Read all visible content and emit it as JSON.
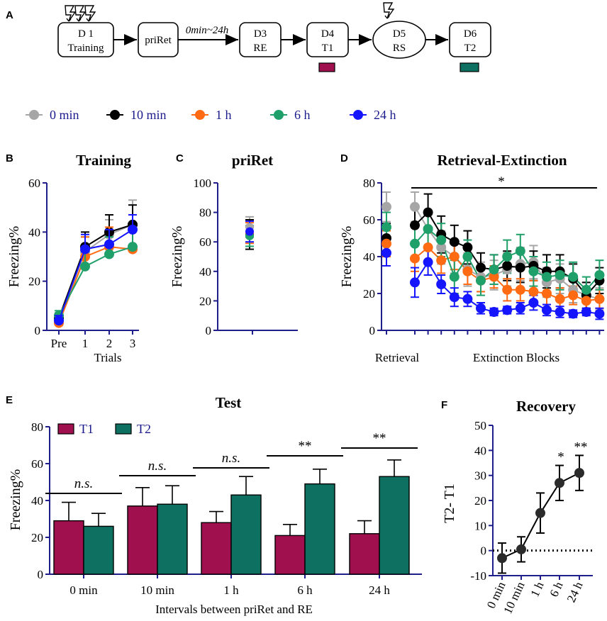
{
  "figure": {
    "panel_letters": [
      "A",
      "B",
      "C",
      "D",
      "E",
      "F"
    ],
    "flow": {
      "boxes": [
        {
          "line1": "D 1",
          "line2": "Training"
        },
        {
          "line1": "priRet",
          "line2": ""
        },
        {
          "line1": "D3",
          "line2": "RE"
        },
        {
          "line1": "D4",
          "line2": "T1"
        },
        {
          "line1": "D5",
          "line2": "RS"
        },
        {
          "line1": "D6",
          "line2": "T2"
        }
      ],
      "interval_label": "0min~24h",
      "t1_color": "#a0104e",
      "t2_color": "#0e7060"
    },
    "legend": [
      {
        "label": "0 min",
        "color": "#a6a6a6"
      },
      {
        "label": "10 min",
        "color": "#000000"
      },
      {
        "label": "1 h",
        "color": "#ff6a13"
      },
      {
        "label": "6 h",
        "color": "#1fa06a"
      },
      {
        "label": "24 h",
        "color": "#1515ff"
      }
    ],
    "y_axis_label": "Freezing%"
  },
  "chart_data": [
    {
      "id": "B",
      "type": "line",
      "title": "Training",
      "xlabel": "Trials",
      "ylabel": "Freezing%",
      "categories": [
        "Pre",
        "1",
        "2",
        "3"
      ],
      "ylim": [
        0,
        60
      ],
      "yticks": [
        0,
        20,
        40,
        60
      ],
      "series": [
        {
          "name": "0 min",
          "values": [
            4,
            32,
            39,
            43
          ],
          "errors": [
            2,
            6,
            6,
            10
          ]
        },
        {
          "name": "10 min",
          "values": [
            5,
            34,
            40,
            43
          ],
          "errors": [
            2,
            6,
            7,
            8
          ]
        },
        {
          "name": "1 h",
          "values": [
            3,
            30,
            34,
            33
          ],
          "errors": [
            2,
            8,
            8,
            9
          ]
        },
        {
          "name": "6 h",
          "values": [
            6,
            26,
            31,
            34
          ],
          "errors": [
            2,
            6,
            7,
            8
          ]
        },
        {
          "name": "24 h",
          "values": [
            4,
            33,
            35,
            41
          ],
          "errors": [
            2,
            6,
            6,
            6
          ]
        }
      ]
    },
    {
      "id": "C",
      "type": "scatter",
      "title": "priRet",
      "ylabel": "Freezing%",
      "ylim": [
        0,
        100
      ],
      "yticks": [
        0,
        20,
        40,
        60,
        80,
        100
      ],
      "series": [
        {
          "name": "0 min",
          "values": [
            70
          ],
          "errors": [
            7
          ]
        },
        {
          "name": "10 min",
          "values": [
            65
          ],
          "errors": [
            10
          ]
        },
        {
          "name": "1 h",
          "values": [
            66
          ],
          "errors": [
            7
          ]
        },
        {
          "name": "6 h",
          "values": [
            64
          ],
          "errors": [
            7
          ]
        },
        {
          "name": "24 h",
          "values": [
            67
          ],
          "errors": [
            7
          ]
        }
      ]
    },
    {
      "id": "D",
      "type": "line",
      "title": "Retrieval-Extinction",
      "ylabel": "Freezing%",
      "xlabel_left": "Retrieval",
      "xlabel_right": "Extinction Blocks",
      "ylim": [
        0,
        80
      ],
      "yticks": [
        0,
        20,
        40,
        60,
        80
      ],
      "significance": "*",
      "retrieval_points": 1,
      "extinction_blocks": 15,
      "series": [
        {
          "name": "0 min",
          "retrieval": 67,
          "retrieval_err": 8,
          "values": [
            67,
            55,
            45,
            40,
            33,
            29,
            30,
            33,
            36,
            37,
            26,
            28,
            22,
            19,
            17
          ],
          "errors": [
            8,
            9,
            9,
            9,
            9,
            8,
            8,
            9,
            9,
            9,
            8,
            8,
            7,
            7,
            6
          ]
        },
        {
          "name": "10 min",
          "retrieval": 50,
          "retrieval_err": 8,
          "values": [
            57,
            64,
            52,
            48,
            45,
            34,
            33,
            35,
            34,
            35,
            32,
            32,
            28,
            19,
            27
          ],
          "errors": [
            9,
            10,
            10,
            9,
            9,
            8,
            8,
            8,
            8,
            8,
            9,
            9,
            8,
            7,
            7
          ]
        },
        {
          "name": "1 h",
          "retrieval": 47,
          "retrieval_err": 7,
          "values": [
            39,
            45,
            38,
            40,
            32,
            27,
            29,
            22,
            22,
            21,
            20,
            17,
            19,
            16,
            17
          ],
          "errors": [
            7,
            8,
            7,
            7,
            7,
            6,
            6,
            6,
            6,
            6,
            6,
            6,
            5,
            5,
            5
          ]
        },
        {
          "name": "6 h",
          "retrieval": 56,
          "retrieval_err": 8,
          "values": [
            47,
            55,
            49,
            29,
            40,
            27,
            33,
            40,
            43,
            32,
            29,
            30,
            29,
            22,
            30
          ],
          "errors": [
            9,
            9,
            9,
            9,
            9,
            8,
            8,
            9,
            9,
            8,
            8,
            8,
            8,
            7,
            8
          ]
        },
        {
          "name": "24 h",
          "retrieval": 42,
          "retrieval_err": 7,
          "values": [
            26,
            37,
            25,
            18,
            17,
            12,
            10,
            11,
            12,
            15,
            11,
            10,
            9,
            10,
            9
          ],
          "errors": [
            8,
            7,
            5,
            5,
            4,
            3,
            2,
            2,
            3,
            4,
            3,
            3,
            2,
            2,
            3
          ]
        }
      ]
    },
    {
      "id": "E",
      "type": "bar",
      "title": "Test",
      "xlabel": "Intervals between priRet and RE",
      "ylabel": "Freezing%",
      "categories": [
        "0 min",
        "10 min",
        "1 h",
        "6 h",
        "24 h"
      ],
      "ylim": [
        0,
        80
      ],
      "yticks": [
        0,
        20,
        40,
        60,
        80
      ],
      "series": [
        {
          "name": "T1",
          "values": [
            29,
            37,
            28,
            21,
            22
          ],
          "errors": [
            10,
            10,
            6,
            6,
            7
          ]
        },
        {
          "name": "T2",
          "values": [
            26,
            38,
            43,
            49,
            53
          ],
          "errors": [
            7,
            10,
            10,
            8,
            9
          ]
        }
      ],
      "significance": [
        "n.s.",
        "n.s.",
        "n.s.",
        "**",
        "**"
      ]
    },
    {
      "id": "F",
      "type": "line",
      "title": "Recovery",
      "ylabel": "T2- T1",
      "categories": [
        "0 min",
        "10 min",
        "1 h",
        "6 h",
        "24 h"
      ],
      "ylim": [
        -10,
        50
      ],
      "yticks": [
        -10,
        0,
        10,
        20,
        30,
        40,
        50
      ],
      "values": [
        -3,
        0.5,
        15,
        27,
        31
      ],
      "errors": [
        6,
        5,
        8,
        7,
        7
      ],
      "significance": [
        "",
        "",
        "",
        "*",
        "**"
      ],
      "reference_line": 0
    }
  ]
}
